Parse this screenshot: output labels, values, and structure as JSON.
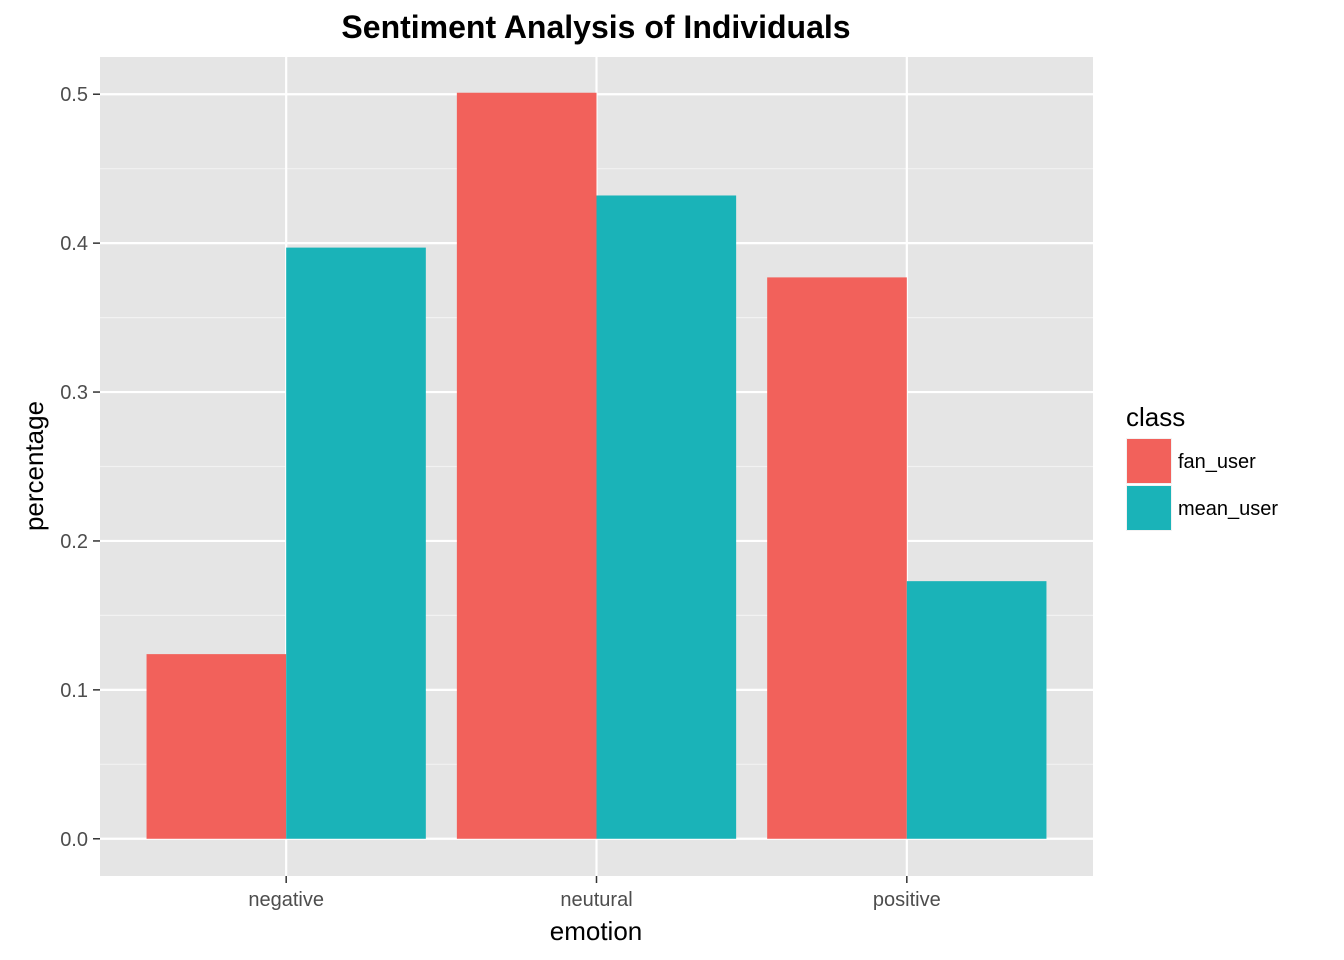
{
  "chart_data": {
    "type": "bar",
    "title": "Sentiment Analysis of Individuals",
    "xlabel": "emotion",
    "ylabel": "percentage",
    "categories": [
      "negative",
      "neutural",
      "positive"
    ],
    "series": [
      {
        "name": "fan_user",
        "values": [
          0.124,
          0.501,
          0.377
        ]
      },
      {
        "name": "mean_user",
        "values": [
          0.397,
          0.432,
          0.173
        ]
      }
    ],
    "ylim": [
      -0.025,
      0.525
    ],
    "yticks": [
      0.0,
      0.1,
      0.2,
      0.3,
      0.4,
      0.5
    ],
    "ytick_labels": [
      "0.0",
      "0.1",
      "0.2",
      "0.3",
      "0.4",
      "0.5"
    ],
    "grid": true,
    "legend": {
      "title": "class",
      "position": "right"
    },
    "colors": {
      "fan_user": "#F2615B",
      "mean_user": "#1AB3B8",
      "panel": "#E5E5E5",
      "grid": "#FFFFFF"
    }
  }
}
